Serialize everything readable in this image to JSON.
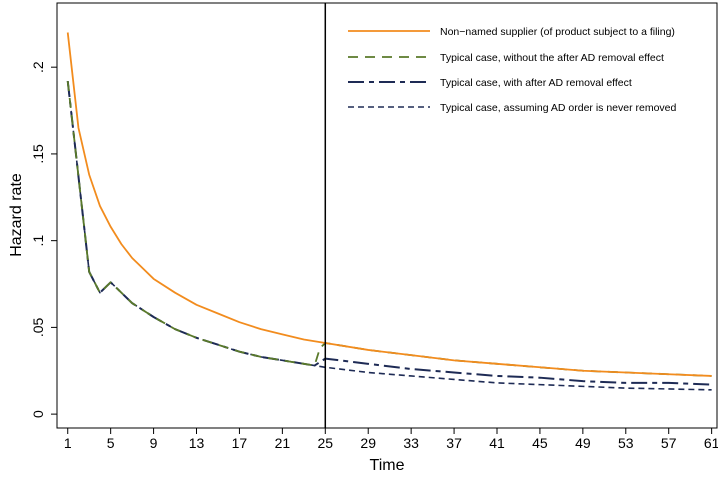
{
  "chart_data": {
    "type": "line",
    "title": "",
    "xlabel": "Time",
    "ylabel": "Hazard rate",
    "xlim": [
      0,
      61.5
    ],
    "ylim": [
      -0.008,
      0.237
    ],
    "x_ticks": [
      1,
      5,
      9,
      13,
      17,
      21,
      25,
      29,
      33,
      37,
      41,
      45,
      49,
      53,
      57,
      61
    ],
    "x_tick_labels": [
      "1",
      "5",
      "9",
      "13",
      "17",
      "21",
      "25",
      "29",
      "33",
      "37",
      "41",
      "45",
      "49",
      "53",
      "57",
      "61"
    ],
    "y_ticks": [
      0,
      0.05,
      0.1,
      0.15,
      0.2
    ],
    "y_tick_labels": [
      "0",
      ".05",
      ".1",
      ".15",
      ".2"
    ],
    "grid": false,
    "legend_position": "top-right",
    "reference_line": {
      "x": 25
    },
    "series": [
      {
        "name": "Non−named supplier (of product subject to a filing)",
        "color": "#f28c1e",
        "dash": "solid",
        "points": [
          [
            1,
            0.22
          ],
          [
            2,
            0.165
          ],
          [
            3,
            0.138
          ],
          [
            4,
            0.12
          ],
          [
            5,
            0.108
          ],
          [
            6,
            0.098
          ],
          [
            7,
            0.09
          ],
          [
            8,
            0.084
          ],
          [
            9,
            0.078
          ],
          [
            11,
            0.07
          ],
          [
            13,
            0.063
          ],
          [
            15,
            0.058
          ],
          [
            17,
            0.053
          ],
          [
            19,
            0.049
          ],
          [
            21,
            0.046
          ],
          [
            23,
            0.043
          ],
          [
            25,
            0.041
          ],
          [
            29,
            0.037
          ],
          [
            33,
            0.034
          ],
          [
            37,
            0.031
          ],
          [
            41,
            0.029
          ],
          [
            45,
            0.027
          ],
          [
            49,
            0.025
          ],
          [
            53,
            0.024
          ],
          [
            57,
            0.023
          ],
          [
            61,
            0.022
          ]
        ]
      },
      {
        "name": "Typical case, without the after AD removal effect",
        "color": "#5a7a2a",
        "dash": "dashed",
        "points": [
          [
            1,
            0.192
          ],
          [
            3,
            0.082
          ],
          [
            4,
            0.07
          ],
          [
            5,
            0.076
          ],
          [
            6,
            0.07
          ],
          [
            7,
            0.064
          ],
          [
            9,
            0.056
          ],
          [
            11,
            0.049
          ],
          [
            13,
            0.044
          ],
          [
            15,
            0.04
          ],
          [
            17,
            0.036
          ],
          [
            19,
            0.033
          ],
          [
            21,
            0.031
          ],
          [
            23,
            0.029
          ],
          [
            24,
            0.028
          ],
          [
            24.5,
            0.038
          ],
          [
            25,
            0.041
          ],
          [
            29,
            0.037
          ],
          [
            33,
            0.034
          ],
          [
            37,
            0.031
          ],
          [
            41,
            0.029
          ],
          [
            45,
            0.027
          ],
          [
            49,
            0.025
          ],
          [
            53,
            0.024
          ],
          [
            57,
            0.023
          ],
          [
            61,
            0.022
          ]
        ]
      },
      {
        "name": "Typical case, with after AD removal effect",
        "color": "#1e2b55",
        "dash": "longdash",
        "points": [
          [
            1,
            0.192
          ],
          [
            3,
            0.082
          ],
          [
            4,
            0.07
          ],
          [
            5,
            0.076
          ],
          [
            6,
            0.07
          ],
          [
            7,
            0.064
          ],
          [
            9,
            0.056
          ],
          [
            11,
            0.049
          ],
          [
            13,
            0.044
          ],
          [
            15,
            0.04
          ],
          [
            17,
            0.036
          ],
          [
            19,
            0.033
          ],
          [
            21,
            0.031
          ],
          [
            23,
            0.029
          ],
          [
            24,
            0.028
          ],
          [
            25,
            0.032
          ],
          [
            29,
            0.029
          ],
          [
            33,
            0.026
          ],
          [
            37,
            0.024
          ],
          [
            41,
            0.022
          ],
          [
            45,
            0.021
          ],
          [
            49,
            0.019
          ],
          [
            53,
            0.018
          ],
          [
            57,
            0.018
          ],
          [
            61,
            0.017
          ]
        ]
      },
      {
        "name": "Typical case, assuming AD order is never removed",
        "color": "#1e2b55",
        "dash": "shortdash",
        "points": [
          [
            1,
            0.192
          ],
          [
            3,
            0.082
          ],
          [
            4,
            0.07
          ],
          [
            5,
            0.076
          ],
          [
            6,
            0.07
          ],
          [
            7,
            0.064
          ],
          [
            9,
            0.056
          ],
          [
            11,
            0.049
          ],
          [
            13,
            0.044
          ],
          [
            15,
            0.04
          ],
          [
            17,
            0.036
          ],
          [
            19,
            0.033
          ],
          [
            21,
            0.031
          ],
          [
            23,
            0.029
          ],
          [
            25,
            0.027
          ],
          [
            29,
            0.024
          ],
          [
            33,
            0.022
          ],
          [
            37,
            0.02
          ],
          [
            41,
            0.018
          ],
          [
            45,
            0.017
          ],
          [
            49,
            0.016
          ],
          [
            53,
            0.015
          ],
          [
            57,
            0.0145
          ],
          [
            61,
            0.014
          ]
        ]
      }
    ]
  }
}
